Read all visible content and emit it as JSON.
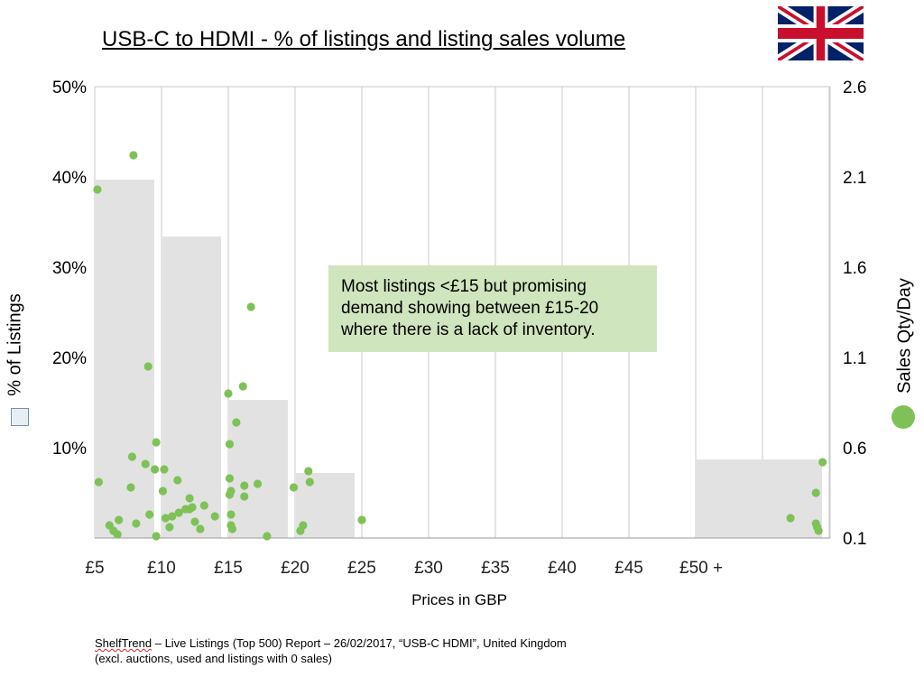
{
  "title": "USB-C to HDMI - % of listings and listing sales volume",
  "flag": {
    "icon": "uk-flag-icon"
  },
  "callout": "Most listings <£15 but promising demand showing between £15-20 where there is a lack of inventory.",
  "footer": {
    "brand": "ShelfTrend",
    "line1_rest": " – Live Listings (Top 500) Report – 26/02/2017, “USB-C HDMI”, United Kingdom",
    "line2": "(excl. auctions, used and listings with 0 sales)"
  },
  "colors": {
    "bar": "#e2e2e2",
    "dot": "#7ec257",
    "grid": "#c8c8c8",
    "callout": "#cfe5bd"
  },
  "chart_data": {
    "type": "bar",
    "title": "USB-C to HDMI - % of listings and listing sales volume",
    "xlabel": "Prices in GBP",
    "ylabel": "% of Listings",
    "y2label": "Sales Qty/Day",
    "x_ticks": [
      "£5",
      "£10",
      "£15",
      "£20",
      "£25",
      "£30",
      "£35",
      "£40",
      "£45",
      "£50 +"
    ],
    "y_ticks": [
      "10%",
      "20%",
      "30%",
      "40%",
      "50%"
    ],
    "y2_ticks": [
      "0.1",
      "0.6",
      "1.1",
      "1.6",
      "2.1",
      "2.6"
    ],
    "ylim": [
      0,
      50
    ],
    "y2lim": [
      0.1,
      2.6
    ],
    "grid": true,
    "bars": [
      {
        "category": "£5-10",
        "from": 5,
        "to": 10,
        "value": 39.7
      },
      {
        "category": "£10-15",
        "from": 10,
        "to": 15,
        "value": 33.4
      },
      {
        "category": "£15-20",
        "from": 15,
        "to": 20,
        "value": 15.3
      },
      {
        "category": "£20-25",
        "from": 20,
        "to": 25,
        "value": 7.2
      },
      {
        "category": "£50 +",
        "from": 50,
        "to": 60,
        "value": 8.7
      }
    ],
    "series": [
      {
        "type": "scatter",
        "axis": "right",
        "points": [
          [
            5.2,
            2.03
          ],
          [
            5.3,
            0.41
          ],
          [
            6.1,
            0.17
          ],
          [
            6.4,
            0.14
          ],
          [
            6.7,
            0.12
          ],
          [
            6.8,
            0.2
          ],
          [
            7.7,
            0.38
          ],
          [
            7.8,
            0.55
          ],
          [
            7.9,
            2.22
          ],
          [
            8.1,
            0.18
          ],
          [
            8.8,
            0.51
          ],
          [
            9.0,
            1.05
          ],
          [
            9.1,
            0.23
          ],
          [
            9.5,
            0.48
          ],
          [
            9.6,
            0.63
          ],
          [
            9.6,
            0.11
          ],
          [
            10.1,
            0.36
          ],
          [
            10.2,
            0.48
          ],
          [
            10.3,
            0.21
          ],
          [
            10.6,
            0.16
          ],
          [
            10.8,
            0.22
          ],
          [
            11.2,
            0.42
          ],
          [
            11.3,
            0.24
          ],
          [
            11.8,
            0.26
          ],
          [
            12.1,
            0.32
          ],
          [
            12.1,
            0.26
          ],
          [
            12.3,
            0.27
          ],
          [
            12.5,
            0.19
          ],
          [
            12.9,
            0.15
          ],
          [
            13.2,
            0.28
          ],
          [
            14.0,
            0.22
          ],
          [
            15.0,
            0.9
          ],
          [
            15.1,
            0.62
          ],
          [
            15.1,
            0.43
          ],
          [
            15.1,
            0.34
          ],
          [
            15.2,
            0.36
          ],
          [
            15.2,
            0.23
          ],
          [
            15.2,
            0.17
          ],
          [
            15.3,
            0.15
          ],
          [
            15.6,
            0.74
          ],
          [
            16.1,
            0.94
          ],
          [
            16.2,
            0.39
          ],
          [
            16.2,
            0.33
          ],
          [
            16.7,
            1.38
          ],
          [
            17.2,
            0.4
          ],
          [
            17.9,
            0.11
          ],
          [
            19.9,
            0.38
          ],
          [
            20.4,
            0.14
          ],
          [
            20.6,
            0.17
          ],
          [
            21.0,
            0.47
          ],
          [
            21.1,
            0.41
          ],
          [
            25.0,
            0.2
          ],
          [
            57.1,
            0.21
          ],
          [
            59.0,
            0.35
          ],
          [
            59.0,
            0.18
          ],
          [
            59.1,
            0.16
          ],
          [
            59.2,
            0.14
          ],
          [
            59.5,
            0.52
          ]
        ]
      }
    ]
  }
}
